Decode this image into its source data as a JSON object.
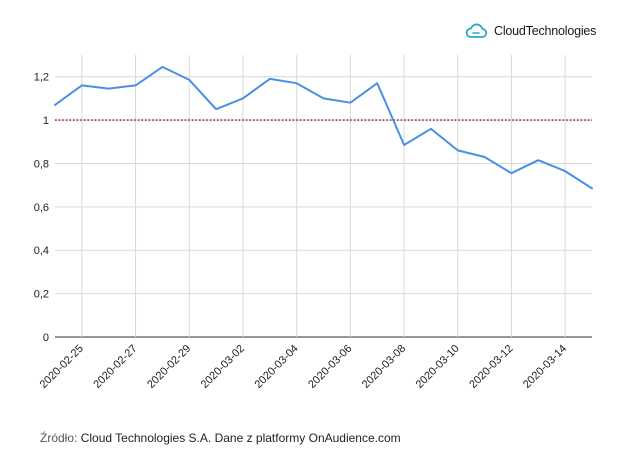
{
  "brand": {
    "name": "CloudTechnologies",
    "logo_icon": "cloud-logo-icon",
    "logo_color": "#29a9c4"
  },
  "source": {
    "label": "Źródło:",
    "text": "Cloud Technologies S.A. Dane z platformy OnAudience.com"
  },
  "chart_data": {
    "type": "line",
    "title": "",
    "xlabel": "",
    "ylabel": "",
    "x": [
      "2020-02-24",
      "2020-02-25",
      "2020-02-26",
      "2020-02-27",
      "2020-02-28",
      "2020-02-29",
      "2020-03-01",
      "2020-03-02",
      "2020-03-03",
      "2020-03-04",
      "2020-03-05",
      "2020-03-06",
      "2020-03-07",
      "2020-03-08",
      "2020-03-09",
      "2020-03-10",
      "2020-03-11",
      "2020-03-12",
      "2020-03-13",
      "2020-03-14",
      "2020-03-15"
    ],
    "x_tick_labels": [
      "2020-02-25",
      "2020-02-27",
      "2020-02-29",
      "2020-03-02",
      "2020-03-04",
      "2020-03-06",
      "2020-03-08",
      "2020-03-10",
      "2020-03-12",
      "2020-03-14"
    ],
    "series": [
      {
        "values": [
          1.07,
          1.16,
          1.145,
          1.16,
          1.245,
          1.185,
          1.05,
          1.1,
          1.19,
          1.17,
          1.1,
          1.08,
          1.17,
          0.885,
          0.96,
          0.86,
          0.83,
          0.755,
          0.815,
          0.765,
          0.685
        ],
        "color": "#4a90e2"
      }
    ],
    "reference_line": {
      "value": 1,
      "color": "#a83232",
      "style": "dotted"
    },
    "y_ticks": [
      "0",
      "0,2",
      "0,4",
      "0,6",
      "0,8",
      "1",
      "1,2"
    ],
    "y_tick_values": [
      0,
      0.2,
      0.4,
      0.6,
      0.8,
      1,
      1.2
    ],
    "ylim": [
      0,
      1.3
    ],
    "grid": true,
    "legend": "none"
  }
}
